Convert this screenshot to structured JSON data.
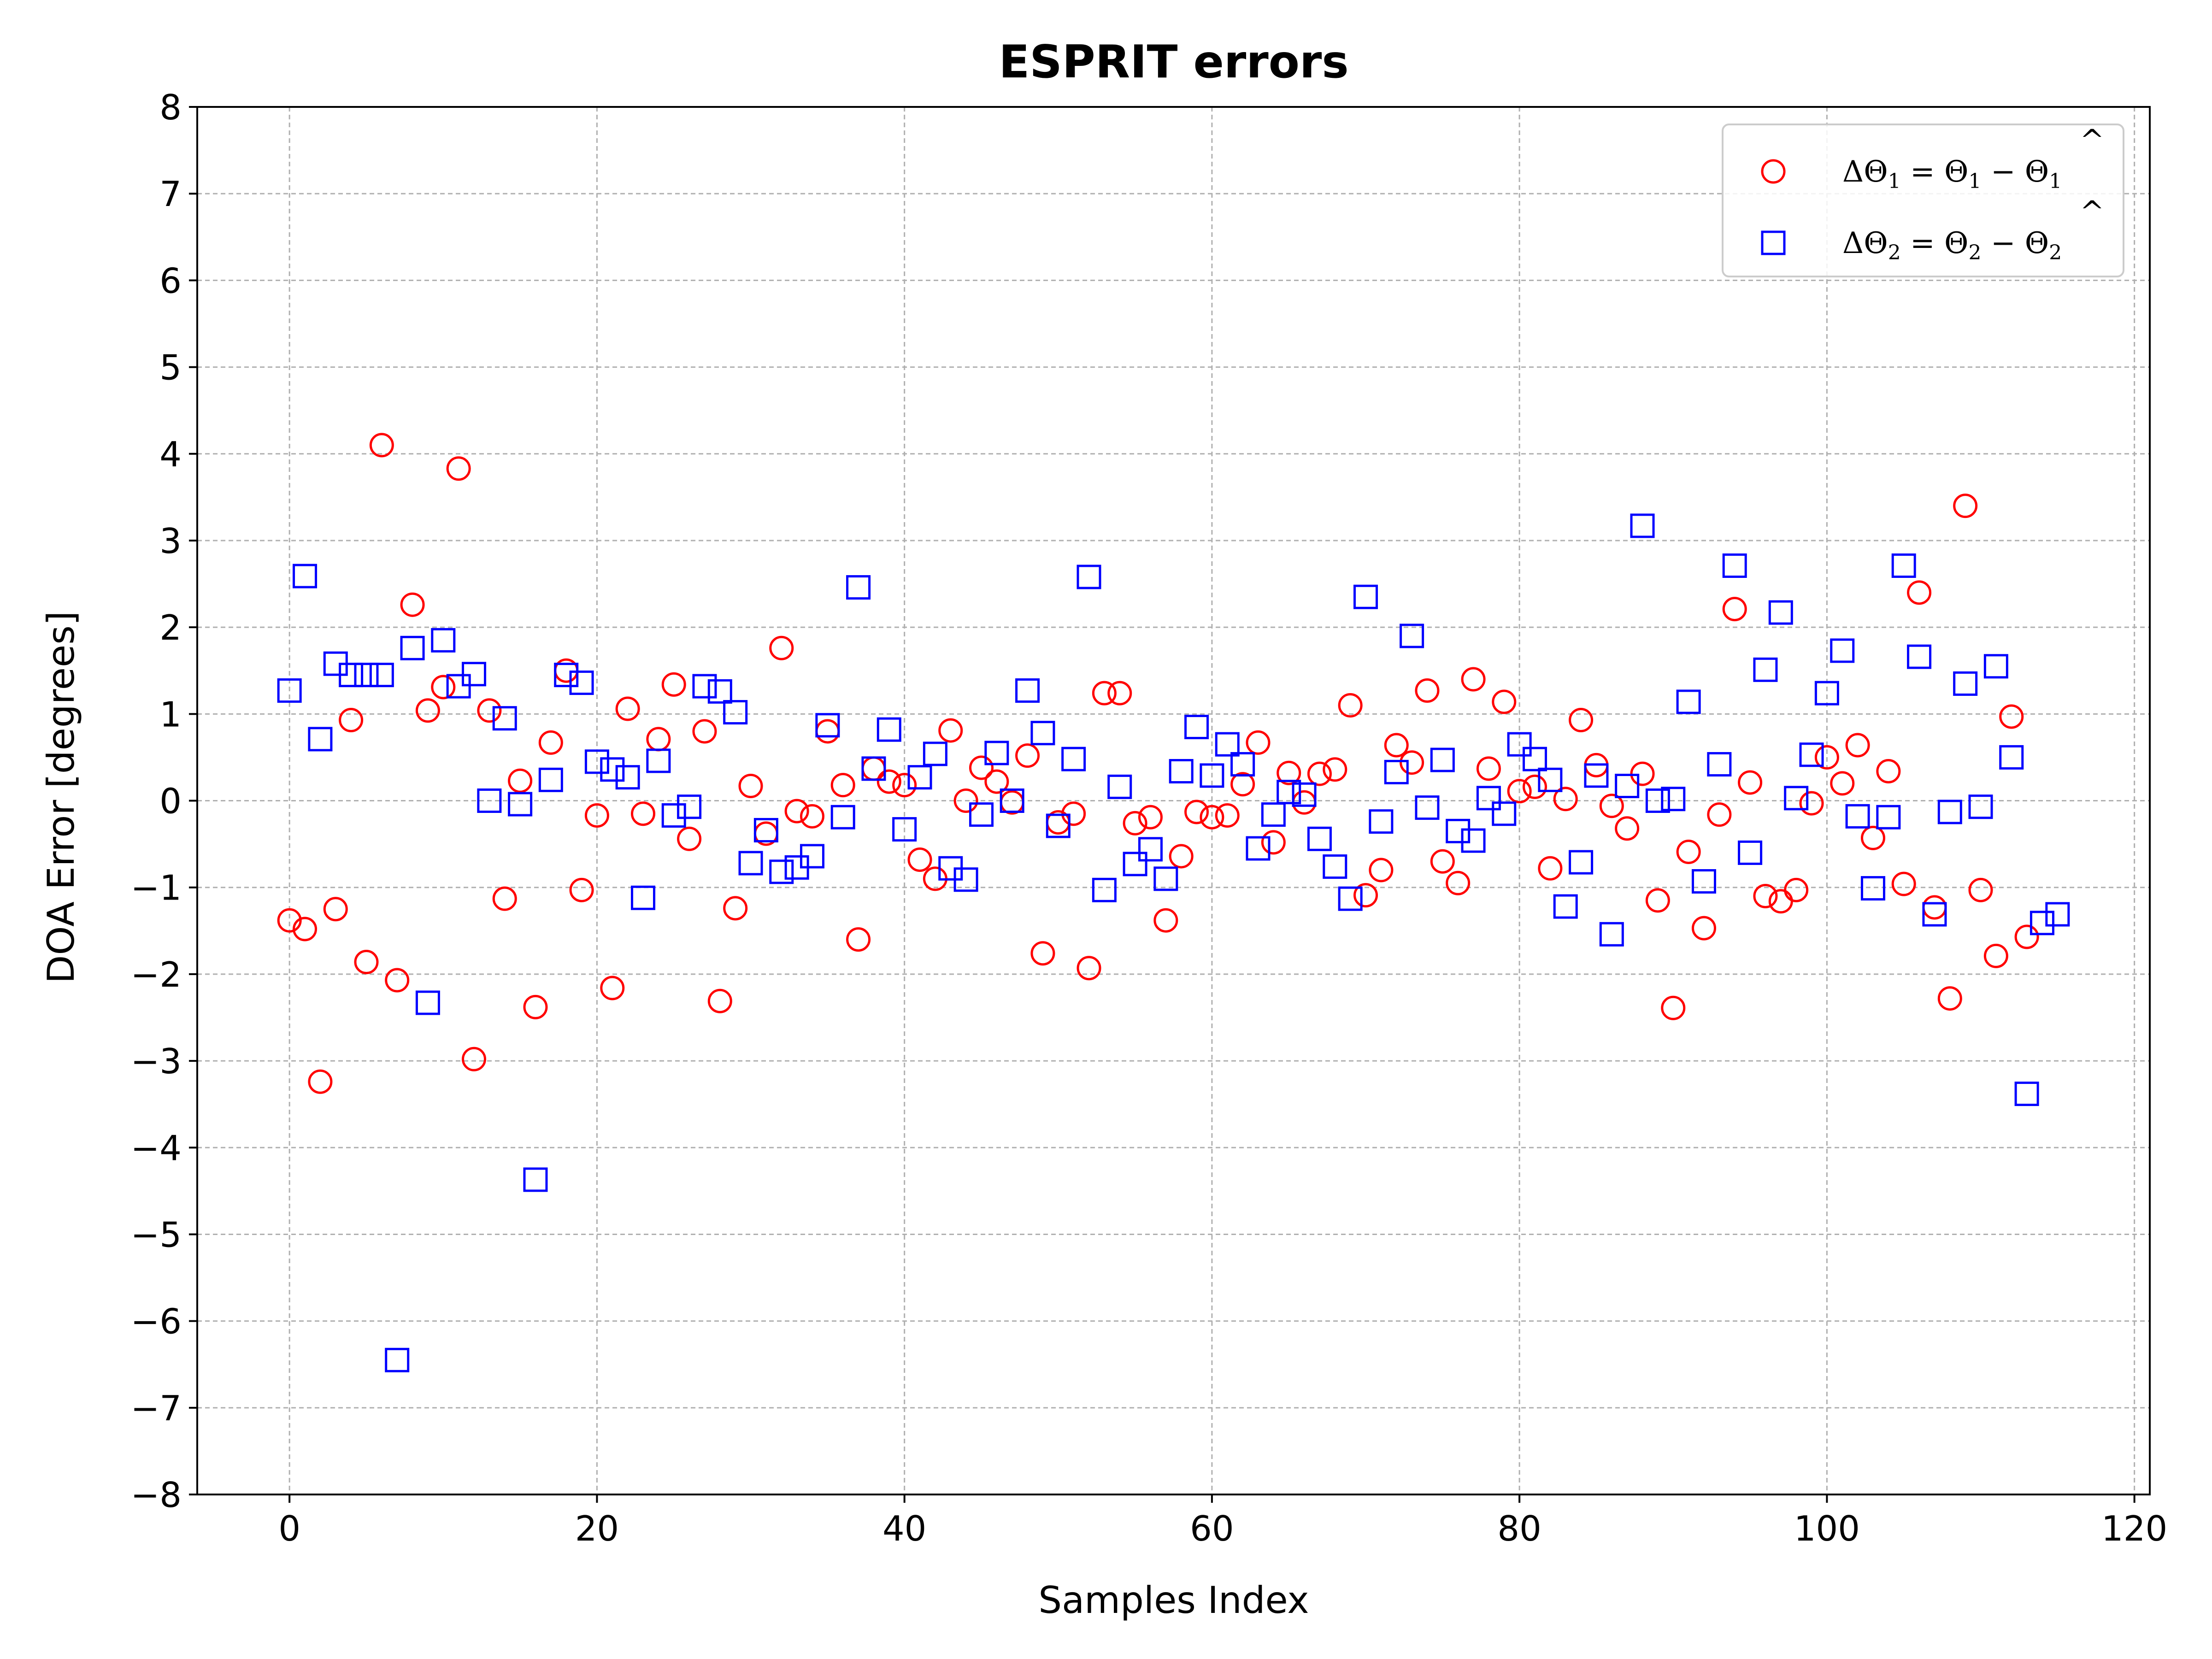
{
  "chart_data": {
    "type": "scatter",
    "title": "ESPRIT errors",
    "xlabel": "Samples Index",
    "ylabel": "DOA Error [degrees]",
    "xlim": [
      -6,
      121
    ],
    "ylim": [
      -8,
      8
    ],
    "x_ticks": [
      0,
      20,
      40,
      60,
      80,
      100,
      120
    ],
    "y_ticks": [
      -8,
      -7,
      -6,
      -5,
      -4,
      -3,
      -2,
      -1,
      0,
      1,
      2,
      3,
      4,
      5,
      6,
      7,
      8
    ],
    "x_tick_labels": [
      "0",
      "20",
      "40",
      "60",
      "80",
      "100",
      "120"
    ],
    "y_tick_labels": [
      "−8",
      "−7",
      "−6",
      "−5",
      "−4",
      "−3",
      "−2",
      "−1",
      "0",
      "1",
      "2",
      "3",
      "4",
      "5",
      "6",
      "7",
      "8"
    ],
    "grid": true,
    "legend_position": "top-right",
    "series": [
      {
        "name": "ΔΘ₁ = Θ₁ − Θ̂₁",
        "marker": "circle",
        "color": "#ff0000",
        "values": [
          -1.38,
          -1.48,
          -3.24,
          -1.25,
          0.93,
          -1.86,
          4.1,
          -2.07,
          2.26,
          1.04,
          1.31,
          3.83,
          -2.98,
          1.04,
          -1.13,
          0.23,
          -2.38,
          0.67,
          1.5,
          -1.03,
          -0.17,
          -2.16,
          1.06,
          -0.15,
          0.71,
          1.34,
          -0.44,
          0.8,
          -2.31,
          -1.24,
          0.17,
          -0.38,
          1.76,
          -0.12,
          -0.18,
          0.8,
          0.18,
          -1.6,
          0.37,
          0.22,
          0.18,
          -0.68,
          -0.9,
          0.81,
          0.0,
          0.38,
          0.22,
          -0.02,
          0.52,
          -1.76,
          -0.25,
          -0.15,
          -1.93,
          1.24,
          1.24,
          -0.26,
          -0.19,
          -1.38,
          -0.64,
          -0.13,
          -0.19,
          -0.17,
          0.19,
          0.67,
          -0.48,
          0.32,
          -0.02,
          0.31,
          0.36,
          1.1,
          -1.09,
          -0.8,
          0.64,
          0.44,
          1.27,
          -0.7,
          -0.95,
          1.4,
          0.37,
          1.14,
          0.11,
          0.16,
          -0.78,
          0.02,
          0.93,
          0.41,
          -0.06,
          -0.32,
          0.31,
          -1.15,
          -2.39,
          -0.59,
          -1.47,
          -0.16,
          2.21,
          0.21,
          -1.1,
          -1.16,
          -1.03,
          -0.03,
          0.5,
          0.2,
          0.64,
          -0.43,
          0.34,
          -0.96,
          2.4,
          -1.23,
          -2.28,
          3.4,
          -1.03,
          -1.79,
          0.97,
          -1.57
        ]
      },
      {
        "name": "ΔΘ₂ = Θ₂ − Θ̂₂",
        "marker": "square",
        "color": "#0000ff",
        "values": [
          1.27,
          2.59,
          0.71,
          1.58,
          1.45,
          1.45,
          1.45,
          -6.45,
          1.76,
          -2.33,
          1.85,
          1.32,
          1.46,
          0.0,
          0.95,
          -0.04,
          -4.37,
          0.24,
          1.45,
          1.36,
          0.45,
          0.36,
          0.27,
          -1.12,
          0.46,
          -0.17,
          -0.07,
          1.32,
          1.26,
          1.02,
          -0.72,
          -0.34,
          -0.82,
          -0.77,
          -0.64,
          0.87,
          -0.19,
          2.46,
          0.37,
          0.82,
          -0.33,
          0.27,
          0.54,
          -0.78,
          -0.91,
          -0.16,
          0.55,
          0.0,
          1.27,
          0.78,
          -0.29,
          0.48,
          2.58,
          -1.03,
          0.16,
          -0.73,
          -0.56,
          -0.9,
          0.34,
          0.85,
          0.29,
          0.65,
          0.42,
          -0.55,
          -0.16,
          0.1,
          0.07,
          -0.44,
          -0.76,
          -1.13,
          2.35,
          -0.24,
          0.33,
          1.9,
          -0.08,
          0.47,
          -0.35,
          -0.46,
          0.03,
          -0.15,
          0.65,
          0.48,
          0.24,
          -1.22,
          -0.71,
          0.29,
          -1.54,
          0.17,
          3.17,
          0.0,
          0.02,
          1.14,
          -0.93,
          0.42,
          2.71,
          -0.6,
          1.51,
          2.17,
          0.03,
          0.53,
          1.24,
          1.73,
          -0.18,
          -1.01,
          -0.19,
          2.71,
          1.66,
          -1.31,
          -0.13,
          1.35,
          -0.07,
          1.55,
          0.5,
          -3.38,
          -1.41,
          -1.31
        ]
      }
    ]
  },
  "legend": {
    "entries": [
      {
        "label_main": "ΔΘ",
        "sub": "1",
        "eq": " = Θ",
        "sub2": "1",
        "minus": " − Θ",
        "sub3": "1"
      },
      {
        "label_main": "ΔΘ",
        "sub": "2",
        "eq": " = Θ",
        "sub2": "2",
        "minus": " − Θ",
        "sub3": "2"
      }
    ]
  }
}
